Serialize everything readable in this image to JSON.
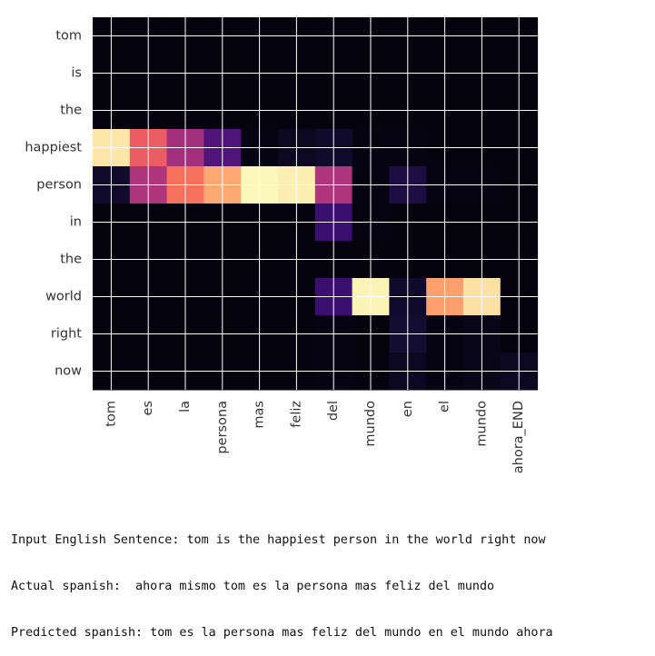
{
  "chart_data": {
    "type": "heatmap",
    "title": "",
    "xlabel": "",
    "ylabel": "",
    "x_labels": [
      "tom",
      "es",
      "la",
      "persona",
      "mas",
      "feliz",
      "del",
      "mundo",
      "en",
      "el",
      "mundo",
      "ahora_END"
    ],
    "y_labels": [
      "tom",
      "is",
      "the",
      "happiest",
      "person",
      "in",
      "the",
      "world",
      "right",
      "now"
    ],
    "value_range": [
      0,
      1
    ],
    "colormap": "magma",
    "grid": true,
    "values": [
      [
        0.02,
        0.02,
        0.02,
        0.02,
        0.02,
        0.02,
        0.02,
        0.02,
        0.02,
        0.02,
        0.02,
        0.02
      ],
      [
        0.02,
        0.02,
        0.02,
        0.02,
        0.02,
        0.02,
        0.02,
        0.02,
        0.02,
        0.02,
        0.02,
        0.02
      ],
      [
        0.02,
        0.02,
        0.02,
        0.02,
        0.02,
        0.02,
        0.02,
        0.02,
        0.02,
        0.02,
        0.02,
        0.02
      ],
      [
        0.95,
        0.65,
        0.45,
        0.25,
        0.03,
        0.06,
        0.08,
        0.03,
        0.03,
        0.02,
        0.02,
        0.02
      ],
      [
        0.08,
        0.48,
        0.7,
        0.82,
        0.99,
        0.97,
        0.48,
        0.03,
        0.12,
        0.03,
        0.03,
        0.02
      ],
      [
        0.02,
        0.02,
        0.02,
        0.02,
        0.02,
        0.02,
        0.2,
        0.03,
        0.02,
        0.02,
        0.02,
        0.02
      ],
      [
        0.02,
        0.02,
        0.02,
        0.02,
        0.02,
        0.02,
        0.02,
        0.02,
        0.02,
        0.02,
        0.02,
        0.02
      ],
      [
        0.02,
        0.02,
        0.02,
        0.02,
        0.02,
        0.02,
        0.2,
        0.98,
        0.08,
        0.8,
        0.94,
        0.02
      ],
      [
        0.02,
        0.02,
        0.02,
        0.02,
        0.02,
        0.02,
        0.03,
        0.02,
        0.09,
        0.03,
        0.04,
        0.02
      ],
      [
        0.02,
        0.02,
        0.02,
        0.02,
        0.02,
        0.02,
        0.03,
        0.02,
        0.06,
        0.03,
        0.04,
        0.06
      ]
    ]
  },
  "output": {
    "input_sentence": "Input English Sentence: tom is the happiest person in the world right now",
    "actual": "Actual spanish:  ahora mismo tom es la persona mas feliz del mundo",
    "predicted": "Predicted spanish: tom es la persona mas feliz del mundo en el mundo ahora"
  }
}
